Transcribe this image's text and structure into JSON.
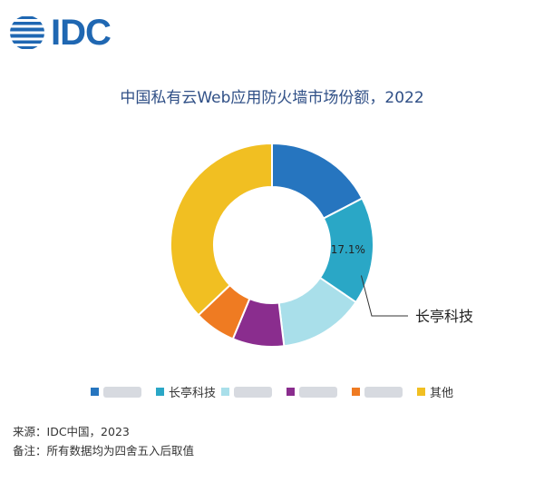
{
  "logo": {
    "text": "IDC"
  },
  "chart_data": {
    "type": "pie",
    "title": "中国私有云Web应用防火墙市场份额，2022",
    "categories": [
      "",
      "长亭科技",
      "",
      "",
      "",
      "其他"
    ],
    "values": [
      17.4,
      17.1,
      13.6,
      8.2,
      6.6,
      37.1
    ],
    "data_labels": [
      "",
      "17.1%",
      "",
      "",
      "",
      ""
    ],
    "colors": [
      "#2675bf",
      "#2aa7c6",
      "#a9dfea",
      "#8a2d8e",
      "#ef7b22",
      "#f1bf22"
    ],
    "callout": {
      "slice_index": 1,
      "text": "长亭科技"
    },
    "legend_position": "bottom",
    "donut": true
  },
  "footnotes": {
    "source_label": "来源：",
    "source_value": "IDC中国，2023",
    "note_label": "备注：",
    "note_value": "所有数据均为四舍五入后取值"
  }
}
